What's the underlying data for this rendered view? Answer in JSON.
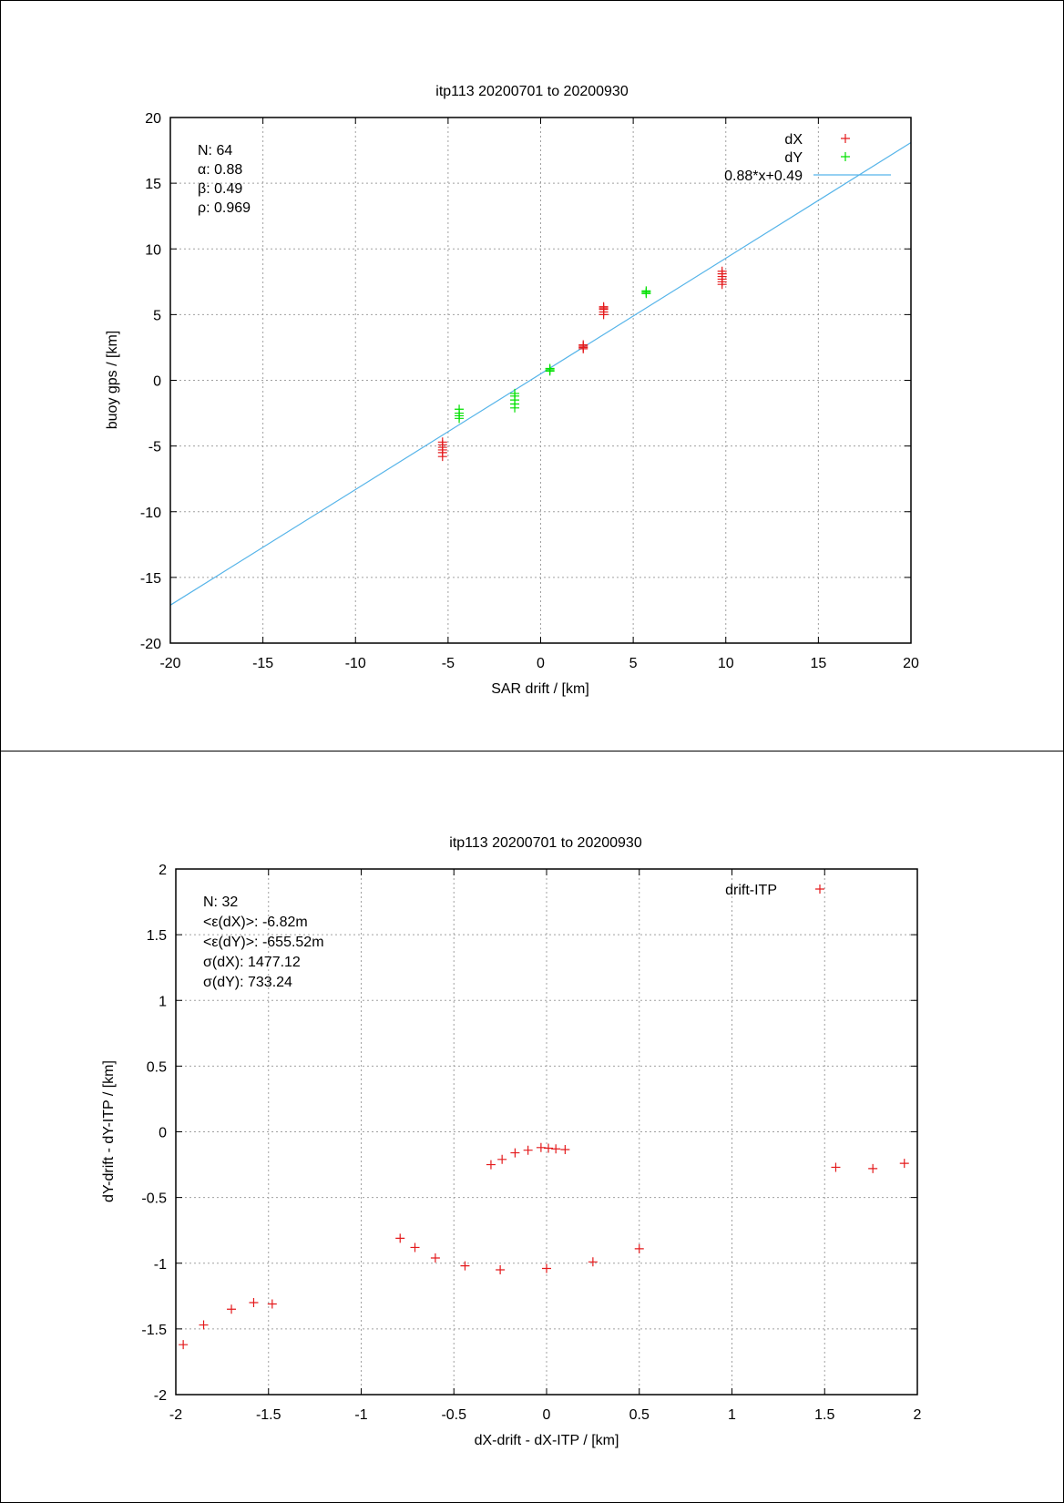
{
  "chart_data": [
    {
      "type": "scatter",
      "title": "itp113 20200701 to 20200930",
      "xlabel": "SAR drift / [km]",
      "ylabel": "buoy gps / [km]",
      "xlim": [
        -20,
        20
      ],
      "ylim": [
        -20,
        20
      ],
      "xticks": [
        "-20",
        "-15",
        "-10",
        "-5",
        "0",
        "5",
        "10",
        "15",
        "20"
      ],
      "yticks": [
        "-20",
        "-15",
        "-10",
        "-5",
        "0",
        "5",
        "10",
        "15",
        "20"
      ],
      "grid": true,
      "legend_position": "top-right",
      "stats": [
        "N: 64",
        "α: 0.88",
        "β: 0.49",
        "ρ: 0.969"
      ],
      "series": [
        {
          "name": "dX",
          "color": "#e41a1c",
          "marker": "plus",
          "points": [
            [
              -5.3,
              -4.7
            ],
            [
              -5.3,
              -4.9
            ],
            [
              -5.3,
              -5.1
            ],
            [
              -5.3,
              -5.3
            ],
            [
              -5.3,
              -5.5
            ],
            [
              -5.3,
              -5.8
            ],
            [
              2.3,
              2.4
            ],
            [
              2.3,
              2.6
            ],
            [
              2.3,
              2.7
            ],
            [
              2.3,
              2.5
            ],
            [
              3.4,
              5.0
            ],
            [
              3.4,
              5.2
            ],
            [
              3.4,
              5.4
            ],
            [
              3.4,
              5.6
            ],
            [
              3.4,
              5.5
            ],
            [
              9.8,
              7.3
            ],
            [
              9.8,
              7.5
            ],
            [
              9.8,
              7.7
            ],
            [
              9.8,
              7.9
            ],
            [
              9.8,
              8.1
            ],
            [
              9.8,
              8.3
            ]
          ]
        },
        {
          "name": "dY",
          "color": "#00e000",
          "marker": "plus",
          "points": [
            [
              -4.4,
              -2.2
            ],
            [
              -4.4,
              -2.5
            ],
            [
              -4.4,
              -2.7
            ],
            [
              -4.4,
              -2.9
            ],
            [
              -1.4,
              -1.0
            ],
            [
              -1.4,
              -1.2
            ],
            [
              -1.4,
              -1.5
            ],
            [
              -1.4,
              -1.8
            ],
            [
              -1.4,
              -2.1
            ],
            [
              0.5,
              0.7
            ],
            [
              0.5,
              0.9
            ],
            [
              0.5,
              0.8
            ],
            [
              5.7,
              6.6
            ],
            [
              5.7,
              6.8
            ],
            [
              5.7,
              6.7
            ]
          ]
        }
      ],
      "fit": {
        "name": "0.88*x+0.49",
        "slope": 0.88,
        "intercept": 0.49,
        "color": "#56b4e9"
      }
    },
    {
      "type": "scatter",
      "title": "itp113 20200701 to 20200930",
      "xlabel": "dX-drift - dX-ITP / [km]",
      "ylabel": "dY-drift - dY-ITP / [km]",
      "xlim": [
        -2,
        2
      ],
      "ylim": [
        -2,
        2
      ],
      "xticks": [
        "-2",
        "-1.5",
        "-1",
        "-0.5",
        "0",
        "0.5",
        "1",
        "1.5",
        "2"
      ],
      "yticks": [
        "-2",
        "-1.5",
        "-1",
        "-0.5",
        "0",
        "0.5",
        "1",
        "1.5",
        "2"
      ],
      "grid": true,
      "legend_position": "top-right",
      "stats": [
        "N: 32",
        "<ε(dX)>:  -6.82m",
        "<ε(dY)>: -655.52m",
        "σ(dX):  1477.12",
        "σ(dY):  733.24"
      ],
      "series": [
        {
          "name": "drift-ITP",
          "color": "#e41a1c",
          "marker": "plus",
          "points": [
            [
              -1.96,
              -1.62
            ],
            [
              -1.85,
              -1.47
            ],
            [
              -1.7,
              -1.35
            ],
            [
              -1.58,
              -1.3
            ],
            [
              -1.48,
              -1.31
            ],
            [
              -0.79,
              -0.81
            ],
            [
              -0.71,
              -0.88
            ],
            [
              -0.6,
              -0.96
            ],
            [
              -0.44,
              -1.02
            ],
            [
              -0.25,
              -1.05
            ],
            [
              0.0,
              -1.04
            ],
            [
              0.25,
              -0.99
            ],
            [
              0.5,
              -0.89
            ],
            [
              -0.3,
              -0.25
            ],
            [
              -0.24,
              -0.21
            ],
            [
              -0.17,
              -0.16
            ],
            [
              -0.1,
              -0.14
            ],
            [
              -0.03,
              -0.12
            ],
            [
              0.01,
              -0.125
            ],
            [
              0.05,
              -0.13
            ],
            [
              0.1,
              -0.135
            ],
            [
              1.56,
              -0.27
            ],
            [
              1.76,
              -0.28
            ],
            [
              1.93,
              -0.24
            ]
          ]
        }
      ]
    }
  ]
}
